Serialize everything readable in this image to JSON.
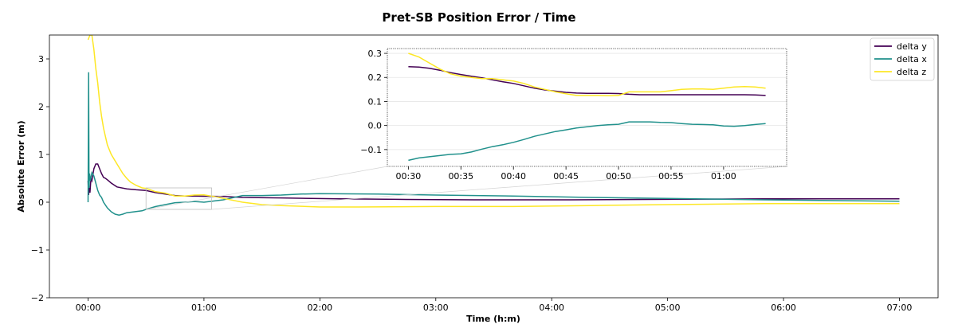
{
  "chart_data": {
    "type": "line",
    "title": "Pret-SB Position Error / Time",
    "xlabel": "Time (h:m)",
    "ylabel": "Absolute Error (m)",
    "x_unit": "minutes",
    "xlim": [
      -20,
      440
    ],
    "ylim": [
      -2,
      3.5
    ],
    "grid": false,
    "legend_position": "top-right",
    "x_ticks": [
      {
        "value": 0,
        "label": "00:00"
      },
      {
        "value": 60,
        "label": "01:00"
      },
      {
        "value": 120,
        "label": "02:00"
      },
      {
        "value": 180,
        "label": "03:00"
      },
      {
        "value": 240,
        "label": "04:00"
      },
      {
        "value": 300,
        "label": "05:00"
      },
      {
        "value": 360,
        "label": "06:00"
      },
      {
        "value": 420,
        "label": "07:00"
      }
    ],
    "y_ticks": [
      {
        "value": -2,
        "label": "−2"
      },
      {
        "value": -1,
        "label": "−1"
      },
      {
        "value": 0,
        "label": "0"
      },
      {
        "value": 1,
        "label": "1"
      },
      {
        "value": 2,
        "label": "2"
      },
      {
        "value": 3,
        "label": "3"
      }
    ],
    "series": [
      {
        "name": "delta y",
        "color": "#440154",
        "x": [
          0,
          0.3,
          0.6,
          1,
          1.5,
          2,
          3,
          4,
          5,
          6,
          7,
          8,
          9,
          10,
          12,
          15,
          20,
          25,
          30,
          35,
          40,
          45,
          50,
          55,
          60,
          70,
          80,
          100,
          130,
          160,
          200,
          250,
          300,
          350,
          420
        ],
        "y": [
          0.45,
          0.15,
          0.3,
          0.2,
          0.5,
          0.45,
          0.7,
          0.8,
          0.8,
          0.7,
          0.6,
          0.52,
          0.5,
          0.47,
          0.4,
          0.32,
          0.28,
          0.26,
          0.245,
          0.2,
          0.17,
          0.14,
          0.13,
          0.13,
          0.125,
          0.12,
          0.1,
          0.09,
          0.07,
          0.06,
          0.05,
          0.05,
          0.06,
          0.07,
          0.07
        ]
      },
      {
        "name": "delta x",
        "color": "#21918c",
        "x": [
          0,
          0.3,
          0.5,
          0.8,
          1.2,
          2,
          3,
          4,
          5,
          6,
          7,
          8,
          10,
          12,
          14,
          16,
          18,
          20,
          24,
          28,
          30,
          35,
          40,
          45,
          50,
          55,
          60,
          70,
          80,
          90,
          100,
          110,
          120,
          150,
          180,
          220,
          260,
          300,
          350,
          420
        ],
        "y": [
          0.0,
          2.72,
          0.3,
          0.6,
          0.45,
          0.62,
          0.55,
          0.4,
          0.25,
          0.15,
          0.1,
          0.0,
          -0.12,
          -0.2,
          -0.25,
          -0.27,
          -0.25,
          -0.22,
          -0.2,
          -0.18,
          -0.15,
          -0.09,
          -0.05,
          -0.01,
          0.0,
          0.015,
          0.0,
          0.05,
          0.14,
          0.14,
          0.15,
          0.17,
          0.18,
          0.17,
          0.15,
          0.13,
          0.1,
          0.08,
          0.05,
          0.02
        ]
      },
      {
        "name": "delta z",
        "color": "#fde725",
        "x": [
          0,
          1,
          2,
          3,
          4,
          5,
          6,
          7,
          8,
          10,
          12,
          15,
          18,
          20,
          22,
          25,
          28,
          30,
          35,
          40,
          45,
          50,
          55,
          60,
          62,
          65,
          70,
          80,
          90,
          100,
          120,
          140,
          180,
          220,
          260,
          300,
          350,
          420
        ],
        "y": [
          3.4,
          3.5,
          3.5,
          3.2,
          2.8,
          2.5,
          2.1,
          1.8,
          1.55,
          1.2,
          1.0,
          0.8,
          0.6,
          0.5,
          0.42,
          0.35,
          0.3,
          0.29,
          0.22,
          0.19,
          0.13,
          0.13,
          0.15,
          0.155,
          0.14,
          0.12,
          0.08,
          0.0,
          -0.05,
          -0.07,
          -0.1,
          -0.1,
          -0.09,
          -0.09,
          -0.07,
          -0.05,
          -0.03,
          -0.03
        ]
      }
    ],
    "inset": {
      "xlim": [
        28,
        66
      ],
      "ylim": [
        -0.17,
        0.32
      ],
      "source_box": {
        "x": [
          30,
          64
        ],
        "y": [
          -0.15,
          0.3
        ]
      },
      "x_ticks": [
        {
          "value": 30,
          "label": "00:30"
        },
        {
          "value": 35,
          "label": "00:35"
        },
        {
          "value": 40,
          "label": "00:40"
        },
        {
          "value": 45,
          "label": "00:45"
        },
        {
          "value": 50,
          "label": "00:50"
        },
        {
          "value": 55,
          "label": "00:55"
        },
        {
          "value": 60,
          "label": "01:00"
        }
      ],
      "y_ticks": [
        {
          "value": -0.1,
          "label": "−0.1"
        },
        {
          "value": 0.0,
          "label": "0.0"
        },
        {
          "value": 0.1,
          "label": "0.1"
        },
        {
          "value": 0.2,
          "label": "0.2"
        },
        {
          "value": 0.3,
          "label": "0.3"
        }
      ],
      "grid": true,
      "series": [
        {
          "name": "delta y",
          "color": "#440154",
          "x": [
            30,
            31,
            32,
            33,
            34,
            35,
            36,
            37,
            38,
            39,
            40,
            41,
            42,
            43,
            44,
            45,
            46,
            47,
            48,
            49,
            50,
            51,
            52,
            53,
            54,
            55,
            56,
            57,
            58,
            59,
            60,
            61,
            62,
            63,
            64
          ],
          "y": [
            0.245,
            0.243,
            0.238,
            0.23,
            0.22,
            0.212,
            0.205,
            0.198,
            0.19,
            0.182,
            0.175,
            0.165,
            0.155,
            0.148,
            0.143,
            0.138,
            0.135,
            0.134,
            0.134,
            0.134,
            0.133,
            0.13,
            0.128,
            0.128,
            0.128,
            0.128,
            0.128,
            0.128,
            0.128,
            0.128,
            0.128,
            0.128,
            0.128,
            0.127,
            0.125
          ]
        },
        {
          "name": "delta x",
          "color": "#21918c",
          "x": [
            30,
            31,
            32,
            33,
            34,
            35,
            36,
            37,
            38,
            39,
            40,
            41,
            42,
            43,
            44,
            45,
            46,
            47,
            48,
            49,
            50,
            51,
            52,
            53,
            54,
            55,
            56,
            57,
            58,
            59,
            60,
            61,
            62,
            63,
            64
          ],
          "y": [
            -0.145,
            -0.135,
            -0.13,
            -0.125,
            -0.12,
            -0.118,
            -0.11,
            -0.098,
            -0.088,
            -0.08,
            -0.07,
            -0.058,
            -0.045,
            -0.035,
            -0.025,
            -0.018,
            -0.01,
            -0.005,
            0.0,
            0.003,
            0.005,
            0.015,
            0.015,
            0.015,
            0.013,
            0.012,
            0.008,
            0.005,
            0.004,
            0.003,
            -0.002,
            -0.003,
            0.0,
            0.004,
            0.008
          ]
        },
        {
          "name": "delta z",
          "color": "#fde725",
          "x": [
            30,
            31,
            32,
            33,
            34,
            35,
            36,
            37,
            38,
            39,
            40,
            41,
            42,
            43,
            44,
            45,
            46,
            47,
            48,
            49,
            50,
            51,
            52,
            53,
            54,
            55,
            56,
            57,
            58,
            59,
            60,
            61,
            62,
            63,
            64
          ],
          "y": [
            0.3,
            0.285,
            0.26,
            0.235,
            0.215,
            0.205,
            0.2,
            0.195,
            0.195,
            0.19,
            0.185,
            0.175,
            0.16,
            0.15,
            0.14,
            0.132,
            0.125,
            0.125,
            0.125,
            0.124,
            0.125,
            0.14,
            0.14,
            0.14,
            0.14,
            0.145,
            0.15,
            0.152,
            0.152,
            0.15,
            0.155,
            0.16,
            0.162,
            0.16,
            0.155
          ]
        }
      ]
    }
  }
}
